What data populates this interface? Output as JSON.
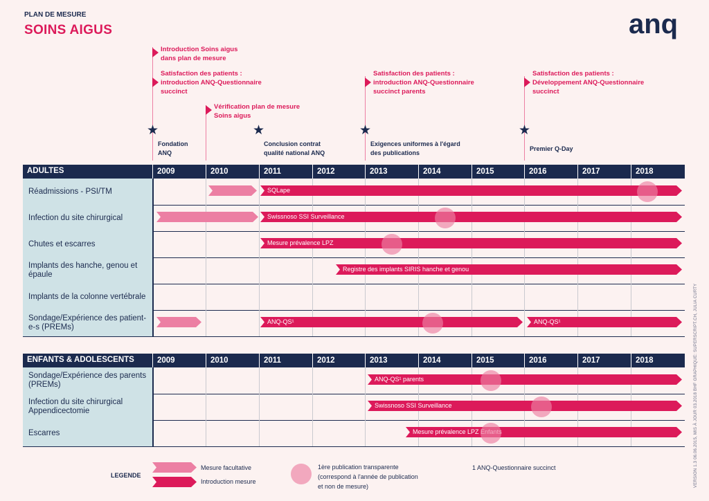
{
  "header": {
    "kicker": "PLAN DE MESURE",
    "title": "SOINS AIGUS"
  },
  "logo": {
    "text": "anq",
    "color": "#1b2a4e"
  },
  "milestones": {
    "intro_soins_aigus": [
      "Introduction Soins aigus",
      "dans plan de mesure"
    ],
    "satisfaction_2009": [
      "Satisfaction des patients :",
      "introduction ANQ-Questionnaire",
      "succinct"
    ],
    "verification": [
      "Vérification plan de mesure",
      "Soins aigus"
    ],
    "satisfaction_2013": [
      "Satisfaction des patients :",
      "introduction ANQ-Questionnaire",
      "succinct parents"
    ],
    "satisfaction_2016": [
      "Satisfaction des patients :",
      "Développement ANQ-Questionnaire",
      "succinct"
    ]
  },
  "foundations": {
    "fondation": [
      "Fondation",
      "ANQ"
    ],
    "conclusion": [
      "Conclusion contrat",
      "qualité national ANQ"
    ],
    "exigences": [
      "Exigences uniformes à l'égard",
      "des publications"
    ],
    "qday": [
      "Premier Q-Day"
    ]
  },
  "years": [
    "2009",
    "2010",
    "2011",
    "2012",
    "2013",
    "2014",
    "2015",
    "2016",
    "2017",
    "2018"
  ],
  "adultes": {
    "label": "ADULTES",
    "rows": [
      {
        "label": "Réadmissions - PSI/TM",
        "bars": [
          {
            "text": ""
          },
          {
            "text": "SQLape"
          }
        ]
      },
      {
        "label": "Infection du site chirurgical",
        "bars": [
          {
            "text": ""
          },
          {
            "text": "Swissnoso SSI Surveillance"
          }
        ]
      },
      {
        "label": "Chutes et escarres",
        "bars": [
          {
            "text": "Mesure prévalence LPZ"
          }
        ]
      },
      {
        "label": "Implants des hanche, genou et épaule",
        "bars": [
          {
            "text": "Registre des implants SIRIS hanche et genou"
          }
        ]
      },
      {
        "label": "Implants de la colonne vertébrale",
        "bars": []
      },
      {
        "label": "Sondage/Expérience des patient-e-s (PREMs)",
        "bars": [
          {
            "text": ""
          },
          {
            "text": "ANQ-QS¹"
          },
          {
            "text": "ANQ-QS¹"
          }
        ]
      }
    ]
  },
  "enfants": {
    "label": "ENFANTS & ADOLESCENTS",
    "rows": [
      {
        "label": "Sondage/Expérience des parents (PREMs)",
        "bars": [
          {
            "text": "ANQ-QS¹ parents"
          }
        ]
      },
      {
        "label": "Infection du site chirurgical Appendicectomie",
        "bars": [
          {
            "text": "Swissnoso SSI Surveillance"
          }
        ]
      },
      {
        "label": "Escarres",
        "bars": [
          {
            "text": "Mesure prévalence LPZ Enfants"
          }
        ]
      }
    ]
  },
  "legend": {
    "title": "LEGENDE",
    "facultative": "Mesure facultative",
    "introduction": "Introduction mesure",
    "publication": [
      "1ère publication transparente",
      "(correspond à l'année de publication",
      "et non de mesure)"
    ],
    "footnote": "1 ANQ-Questionnaire succinct"
  },
  "side_note": "VERSION 1.3   06.06.2015, MIS À JOUR 03.2018 BHF   GRAPHIQUE: SUPERSCRIPT.CH, JULIA CURTY",
  "colors": {
    "navy": "#1b2a4e",
    "magenta": "#dc1a5a",
    "pink": "#ec7fa3",
    "teal": "#cfe2e6",
    "background": "#fcf2f1"
  }
}
